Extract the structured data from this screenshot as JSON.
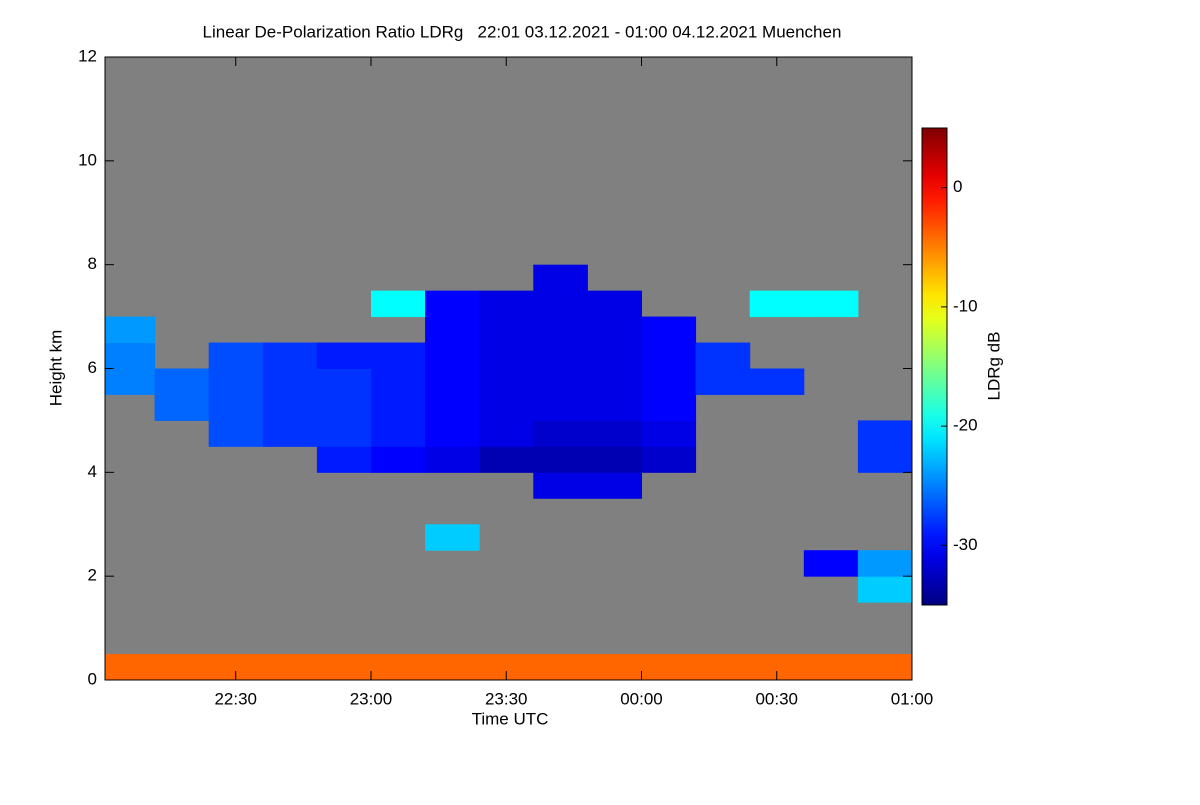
{
  "chart_data": {
    "type": "heatmap",
    "title": "Linear De-Polarization Ratio LDRg   22:01 03.12.2021 - 01:00 04.12.2021 Muenchen",
    "x_label": "Time UTC",
    "y_label": "Height km",
    "colorbar_label": "LDRg dB",
    "colormap": "jet",
    "background_color": "#808080",
    "xlim": [
      22.0167,
      25
    ],
    "xticks": [
      {
        "value": 22.5,
        "label": "22:30"
      },
      {
        "value": 23,
        "label": "23:00"
      },
      {
        "value": 23.5,
        "label": "23:30"
      },
      {
        "value": 24,
        "label": "00:00"
      },
      {
        "value": 24.5,
        "label": "00:30"
      },
      {
        "value": 25,
        "label": "01:00"
      }
    ],
    "ylim": [
      0,
      12
    ],
    "yticks": [
      0,
      2,
      4,
      6,
      8,
      10,
      12
    ],
    "clim": [
      -35,
      5
    ],
    "cticks": [
      0,
      -10,
      -20,
      -30
    ],
    "x": [
      22.1,
      22.3,
      22.5,
      22.7,
      22.9,
      23.1,
      23.3,
      23.5,
      23.7,
      23.9,
      24.1,
      24.3,
      24.5,
      24.7,
      24.9
    ],
    "y": [
      0.25,
      0.75,
      1.25,
      1.75,
      2.25,
      2.75,
      3.25,
      3.75,
      4.25,
      4.75,
      5.25,
      5.75,
      6.25,
      6.75,
      7.25,
      7.75
    ],
    "z": [
      [
        -4,
        -4,
        -4,
        -4,
        -4,
        -4,
        -4,
        -4,
        -4,
        -4,
        -4,
        -4,
        -4,
        -4,
        -4
      ],
      [
        null,
        null,
        null,
        null,
        null,
        null,
        null,
        null,
        null,
        null,
        null,
        null,
        null,
        null,
        null
      ],
      [
        null,
        null,
        null,
        null,
        null,
        null,
        null,
        null,
        null,
        null,
        null,
        null,
        null,
        null,
        null
      ],
      [
        null,
        null,
        null,
        null,
        null,
        null,
        null,
        null,
        null,
        null,
        null,
        null,
        null,
        null,
        -22
      ],
      [
        null,
        null,
        null,
        null,
        null,
        null,
        null,
        null,
        null,
        null,
        null,
        null,
        null,
        -30,
        -24
      ],
      [
        null,
        null,
        null,
        null,
        null,
        null,
        -22,
        null,
        null,
        null,
        null,
        null,
        null,
        null,
        null
      ],
      [
        null,
        null,
        null,
        null,
        null,
        null,
        null,
        null,
        null,
        null,
        null,
        null,
        null,
        null,
        null
      ],
      [
        null,
        null,
        null,
        null,
        null,
        null,
        null,
        null,
        -31,
        -31,
        null,
        null,
        null,
        null,
        null
      ],
      [
        null,
        null,
        null,
        null,
        -29,
        -30,
        -31,
        -33,
        -33,
        -33,
        -32,
        null,
        null,
        null,
        -28
      ],
      [
        null,
        null,
        -27,
        -28,
        -28,
        -29,
        -30,
        -31,
        -32,
        -32,
        -31,
        null,
        null,
        null,
        -28
      ],
      [
        null,
        -26,
        -27,
        -28,
        -28,
        -29,
        -30,
        -31,
        -31,
        -31,
        -30,
        null,
        null,
        null,
        null
      ],
      [
        -25,
        -26,
        -27,
        -28,
        -28,
        -29,
        -30,
        -31,
        -31,
        -31,
        -30,
        -28,
        -28,
        null,
        null
      ],
      [
        -25,
        null,
        -27,
        -28,
        -29,
        -29,
        -30,
        -31,
        -31,
        -31,
        -30,
        -28,
        null,
        null,
        null
      ],
      [
        -24,
        null,
        null,
        null,
        null,
        null,
        -30,
        -31,
        -31,
        -31,
        -30,
        null,
        null,
        null,
        null
      ],
      [
        null,
        null,
        null,
        null,
        null,
        -20,
        -30,
        -31,
        -31,
        -31,
        null,
        null,
        -20,
        -20,
        null
      ],
      [
        null,
        null,
        null,
        null,
        null,
        null,
        null,
        null,
        -31,
        null,
        null,
        null,
        null,
        null,
        null
      ]
    ]
  }
}
